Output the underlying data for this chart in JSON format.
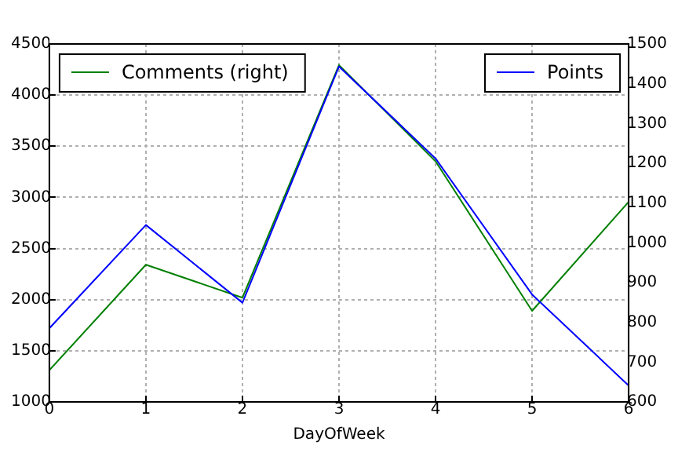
{
  "chart_data": {
    "type": "line",
    "xlabel": "DayOfWeek",
    "x": [
      0,
      1,
      2,
      3,
      4,
      5,
      6
    ],
    "series": [
      {
        "name": "Points",
        "color": "#0000ff",
        "values": [
          1720,
          2730,
          1970,
          4280,
          3380,
          2050,
          1160
        ]
      },
      {
        "name": "Comments (right)",
        "color": "#008000",
        "axis": "y2",
        "values": [
          680,
          945,
          862,
          1447,
          1205,
          829,
          1103
        ]
      }
    ],
    "xlim": [
      0,
      6
    ],
    "xticks": [
      0,
      1,
      2,
      3,
      4,
      5,
      6
    ],
    "ylim": [
      1000,
      4500
    ],
    "yticks": [
      1000,
      1500,
      2000,
      2500,
      3000,
      3500,
      4000,
      4500
    ],
    "y2lim": [
      600,
      1500
    ],
    "y2ticks": [
      600,
      700,
      800,
      900,
      1000,
      1100,
      1200,
      1300,
      1400,
      1500
    ],
    "grid": true,
    "legend": "top"
  }
}
